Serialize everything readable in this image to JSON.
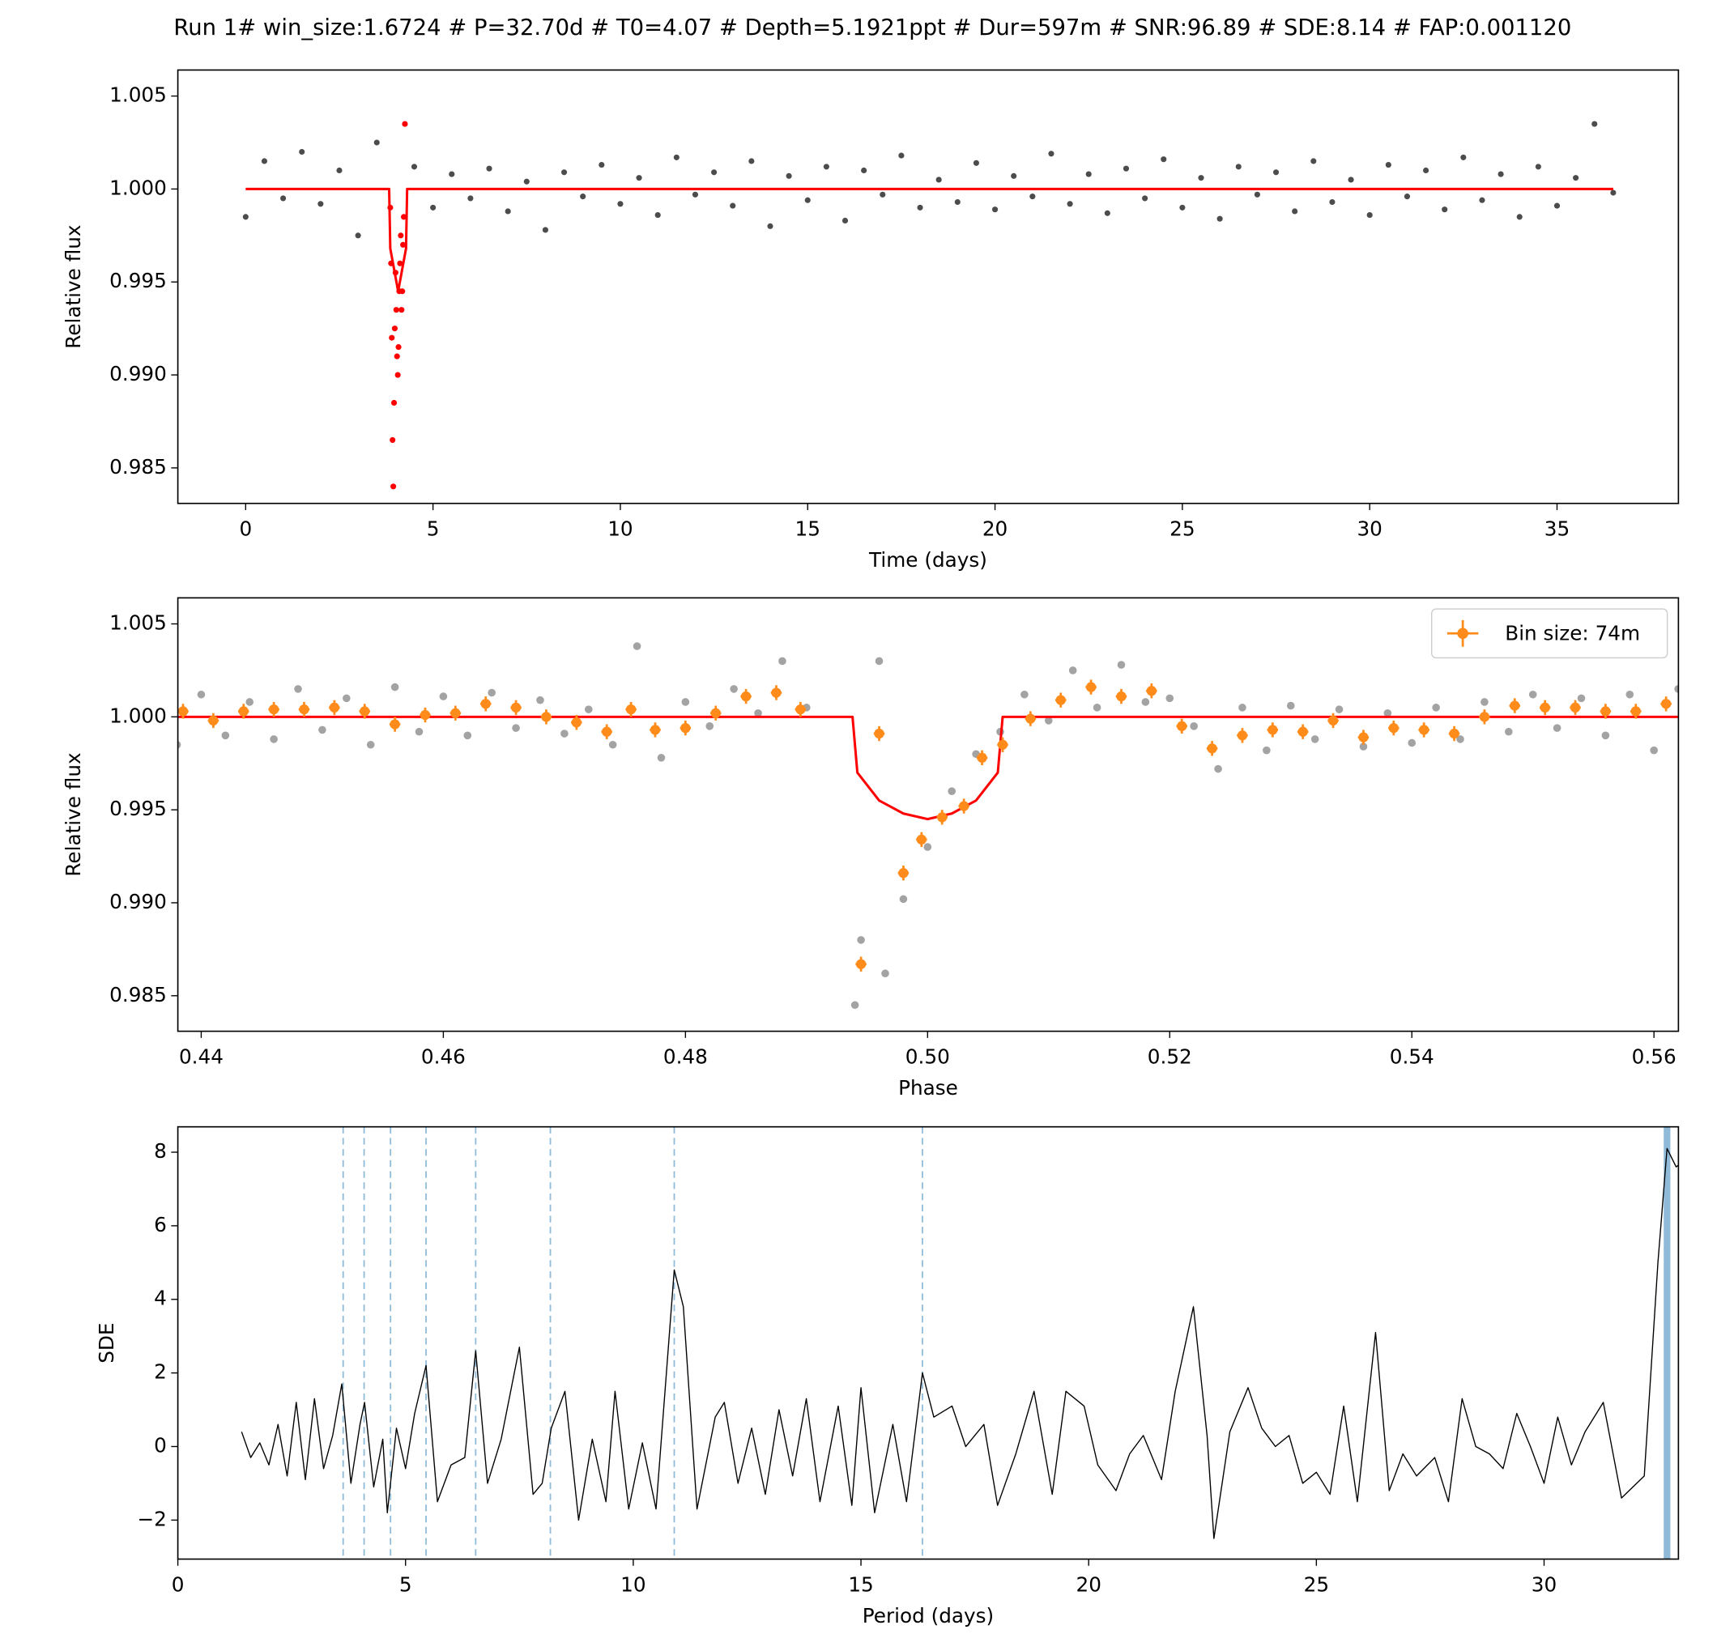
{
  "title": "Run 1# win_size:1.6724 # P=32.70d # T0=4.07 # Depth=5.1921ppt # Dur=597m # SNR:96.89 # SDE:8.14 # FAP:0.001120",
  "chart_data": [
    {
      "type": "scatter",
      "xlabel": "Time (days)",
      "ylabel": "Relative flux",
      "xlim": [
        -1.81,
        38.24
      ],
      "ylim": [
        0.98309,
        1.0064
      ],
      "xticks": [
        0,
        5,
        10,
        15,
        20,
        25,
        30,
        35
      ],
      "yticks": [
        0.985,
        {
          "value": 0.99,
          "label": "0.990"
        },
        0.995,
        {
          "value": 1,
          "label": "1.000"
        },
        1.005
      ],
      "series": [
        {
          "mode": "markers",
          "color": "#000000",
          "x": [
            0,
            0.5,
            1,
            1.5,
            2,
            2.5,
            3,
            3.5,
            4.5,
            5,
            5.5,
            6,
            6.5,
            7,
            7.5,
            8,
            8.5,
            9,
            9.5,
            10,
            10.5,
            11,
            11.5,
            12,
            12.5,
            13,
            13.5,
            14,
            14.5,
            15,
            15.5,
            16,
            16.5,
            17,
            17.5,
            18,
            18.5,
            19,
            19.5,
            20,
            20.5,
            21,
            21.5,
            22,
            22.5,
            23,
            23.5,
            24,
            24.5,
            25,
            25.5,
            26,
            26.5,
            27,
            27.5,
            28,
            28.5,
            29,
            29.5,
            30,
            30.5,
            31,
            31.5,
            32,
            32.5,
            33,
            33.5,
            34,
            34.5,
            35,
            35.5,
            36,
            36.5
          ],
          "values": [
            0.9985,
            1.0015,
            0.9995,
            1.002,
            0.9992,
            1.001,
            0.9975,
            1.0025,
            1.0012,
            0.999,
            1.0008,
            0.9995,
            1.0011,
            0.9988,
            1.0004,
            0.9978,
            1.0009,
            0.9996,
            1.0013,
            0.9992,
            1.0006,
            0.9986,
            1.0017,
            0.9997,
            1.0009,
            0.9991,
            1.0015,
            0.998,
            1.0007,
            0.9994,
            1.0012,
            0.9983,
            1.001,
            0.9997,
            1.0018,
            0.999,
            1.0005,
            0.9993,
            1.0014,
            0.9989,
            1.0007,
            0.9996,
            1.0019,
            0.9992,
            1.0008,
            0.9987,
            1.0011,
            0.9995,
            1.0016,
            0.999,
            1.0006,
            0.9984,
            1.0012,
            0.9997,
            1.0009,
            0.9988,
            1.0015,
            0.9993,
            1.0005,
            0.9986,
            1.0013,
            0.9996,
            1.001,
            0.9989,
            1.0017,
            0.9994,
            1.0008,
            0.9985,
            1.0012,
            0.9991,
            1.0006,
            1.0035,
            0.9998
          ]
        },
        {
          "mode": "markers",
          "color": "#ff0000",
          "x": [
            3.86,
            3.88,
            3.9,
            3.92,
            3.94,
            3.96,
            3.98,
            4.0,
            4.02,
            4.04,
            4.06,
            4.08,
            4.1,
            4.12,
            4.14,
            4.16,
            4.18,
            4.2,
            4.22,
            4.25
          ],
          "values": [
            0.999,
            0.996,
            0.992,
            0.9865,
            0.984,
            0.9885,
            0.9925,
            0.9955,
            0.9935,
            0.991,
            0.99,
            0.9915,
            0.9945,
            0.996,
            0.9975,
            0.9935,
            0.9945,
            0.997,
            0.9985,
            1.0035
          ]
        },
        {
          "mode": "line",
          "color": "#ff0000",
          "x": [
            0,
            3.83,
            3.86,
            4.07,
            4.28,
            4.31,
            36.5
          ],
          "values": [
            1,
            1,
            0.9968,
            0.9945,
            0.9968,
            1,
            1
          ]
        }
      ]
    },
    {
      "type": "scatter",
      "xlabel": "Phase",
      "ylabel": "Relative flux",
      "xlim": [
        0.43807,
        0.56202
      ],
      "ylim": [
        0.98309,
        1.0064
      ],
      "xticks": [
        0.44,
        0.46,
        0.48,
        {
          "value": 0.5,
          "label": "0.50"
        },
        0.52,
        0.54,
        0.56
      ],
      "yticks": [
        0.985,
        {
          "value": 0.99,
          "label": "0.990"
        },
        0.995,
        {
          "value": 1,
          "label": "1.000"
        },
        1.005
      ],
      "legend": "upper right",
      "series": [
        {
          "mode": "markers",
          "color": "#333333",
          "x": [
            0.438,
            0.44,
            0.442,
            0.444,
            0.446,
            0.448,
            0.45,
            0.452,
            0.454,
            0.456,
            0.458,
            0.46,
            0.462,
            0.464,
            0.466,
            0.468,
            0.47,
            0.472,
            0.474,
            0.476,
            0.478,
            0.48,
            0.482,
            0.484,
            0.486,
            0.488,
            0.49,
            0.494,
            0.4945,
            0.496,
            0.4965,
            0.498,
            0.5,
            0.502,
            0.504,
            0.506,
            0.508,
            0.51,
            0.512,
            0.514,
            0.516,
            0.518,
            0.52,
            0.522,
            0.524,
            0.526,
            0.528,
            0.53,
            0.532,
            0.534,
            0.536,
            0.538,
            0.54,
            0.542,
            0.544,
            0.546,
            0.548,
            0.55,
            0.552,
            0.554,
            0.556,
            0.558,
            0.56,
            0.562
          ],
          "values": [
            0.9985,
            1.0012,
            0.999,
            1.0008,
            0.9988,
            1.0015,
            0.9993,
            1.001,
            0.9985,
            1.0016,
            0.9992,
            1.0011,
            0.999,
            1.0013,
            0.9994,
            1.0009,
            0.9991,
            1.0004,
            0.9985,
            1.0038,
            0.9978,
            1.0008,
            0.9995,
            1.0015,
            1.0002,
            1.003,
            1.0005,
            0.9845,
            0.988,
            1.003,
            0.9862,
            0.9902,
            0.993,
            0.996,
            0.998,
            0.9992,
            1.0012,
            0.9998,
            1.0025,
            1.0005,
            1.0028,
            1.0008,
            1.001,
            0.9995,
            0.9972,
            1.0005,
            0.9982,
            1.0006,
            0.9988,
            1.0004,
            0.9984,
            1.0002,
            0.9986,
            1.0005,
            0.9988,
            1.0008,
            0.9992,
            1.0012,
            0.9994,
            1.001,
            0.999,
            1.0012,
            0.9982,
            1.0015
          ]
        },
        {
          "mode": "line",
          "color": "#ff0000",
          "x": [
            0.438,
            0.4938,
            0.4942,
            0.496,
            0.498,
            0.5,
            0.502,
            0.504,
            0.5058,
            0.5062,
            0.562
          ],
          "values": [
            1,
            1,
            0.997,
            0.9955,
            0.9948,
            0.9945,
            0.9948,
            0.9955,
            0.997,
            1,
            1
          ]
        },
        {
          "mode": "errorbar",
          "color": "#ff8c1a",
          "name": "Bin size: 74m",
          "xerr": 0.00045,
          "yerr": 0.0004,
          "x": [
            0.4385,
            0.441,
            0.4435,
            0.446,
            0.4485,
            0.451,
            0.4535,
            0.456,
            0.4585,
            0.461,
            0.4635,
            0.466,
            0.4685,
            0.471,
            0.4735,
            0.4755,
            0.4775,
            0.48,
            0.4825,
            0.485,
            0.4875,
            0.4895,
            0.4945,
            0.496,
            0.498,
            0.4995,
            0.5012,
            0.503,
            0.5045,
            0.5062,
            0.5085,
            0.511,
            0.5135,
            0.516,
            0.5185,
            0.521,
            0.5235,
            0.526,
            0.5285,
            0.531,
            0.5335,
            0.536,
            0.5385,
            0.541,
            0.5435,
            0.546,
            0.5485,
            0.551,
            0.5535,
            0.556,
            0.5585,
            0.561
          ],
          "values": [
            1.0003,
            0.9998,
            1.0003,
            1.0004,
            1.0004,
            1.0005,
            1.0003,
            0.9996,
            1.0001,
            1.0002,
            1.0007,
            1.0005,
            1,
            0.9997,
            0.9992,
            1.0004,
            0.9993,
            0.9994,
            1.0002,
            1.0011,
            1.0013,
            1.0004,
            0.9867,
            0.9991,
            0.9916,
            0.9934,
            0.9946,
            0.9952,
            0.9978,
            0.9985,
            0.9999,
            1.0009,
            1.0016,
            1.0011,
            1.0014,
            0.9995,
            0.9983,
            0.999,
            0.9993,
            0.9992,
            0.9998,
            0.9989,
            0.9994,
            0.9993,
            0.9991,
            1,
            1.0006,
            1.0005,
            1.0005,
            1.0003,
            1.0003,
            1.0007
          ]
        }
      ]
    },
    {
      "type": "line",
      "xlabel": "Period (days)",
      "ylabel": "SDE",
      "xlim": [
        0,
        32.95
      ],
      "ylim": [
        -3.06,
        8.69
      ],
      "xticks": [
        0,
        5,
        10,
        15,
        20,
        25,
        30
      ],
      "yticks": [
        {
          "value": -2,
          "label": "−2"
        },
        0,
        2,
        4,
        6,
        8
      ],
      "vlines": [
        3.63,
        4.09,
        4.67,
        5.45,
        6.54,
        8.18,
        10.9,
        16.35
      ],
      "vline_color": "#1f77b4",
      "highlight": 32.7,
      "series": [
        {
          "mode": "line",
          "color": "#000000",
          "x": [
            1.4,
            1.6,
            1.8,
            2.0,
            2.2,
            2.4,
            2.6,
            2.8,
            3.0,
            3.2,
            3.4,
            3.6,
            3.8,
            4.0,
            4.1,
            4.3,
            4.5,
            4.6,
            4.8,
            5.0,
            5.2,
            5.45,
            5.7,
            6.0,
            6.3,
            6.54,
            6.8,
            7.1,
            7.5,
            7.8,
            8.0,
            8.2,
            8.5,
            8.8,
            9.1,
            9.4,
            9.6,
            9.9,
            10.2,
            10.5,
            10.9,
            11.1,
            11.4,
            11.8,
            12.0,
            12.3,
            12.6,
            12.9,
            13.2,
            13.5,
            13.8,
            14.1,
            14.5,
            14.8,
            15.0,
            15.3,
            15.7,
            16.0,
            16.35,
            16.6,
            17.0,
            17.3,
            17.7,
            18.0,
            18.4,
            18.8,
            19.2,
            19.5,
            19.9,
            20.2,
            20.6,
            20.9,
            21.2,
            21.6,
            21.9,
            22.3,
            22.6,
            22.75,
            23.1,
            23.5,
            23.8,
            24.1,
            24.4,
            24.7,
            25.0,
            25.3,
            25.6,
            25.9,
            26.3,
            26.6,
            26.9,
            27.2,
            27.6,
            27.9,
            28.2,
            28.5,
            28.8,
            29.1,
            29.4,
            29.7,
            30.0,
            30.3,
            30.6,
            30.9,
            31.3,
            31.7,
            32.2,
            32.5,
            32.7,
            32.9,
            32.95
          ],
          "values": [
            0.4,
            -0.3,
            0.1,
            -0.5,
            0.6,
            -0.8,
            1.2,
            -0.9,
            1.3,
            -0.6,
            0.3,
            1.7,
            -1.0,
            0.6,
            1.2,
            -1.1,
            0.2,
            -1.8,
            0.5,
            -0.6,
            0.9,
            2.2,
            -1.5,
            -0.5,
            -0.3,
            2.6,
            -1.0,
            0.2,
            2.7,
            -1.3,
            -1.0,
            0.5,
            1.5,
            -2.0,
            0.2,
            -1.5,
            1.5,
            -1.7,
            0.1,
            -1.7,
            4.8,
            3.8,
            -1.7,
            0.8,
            1.2,
            -1.0,
            0.5,
            -1.3,
            1.0,
            -0.8,
            1.3,
            -1.5,
            1.1,
            -1.6,
            1.6,
            -1.8,
            0.6,
            -1.5,
            2.0,
            0.8,
            1.1,
            0.0,
            0.6,
            -1.6,
            -0.2,
            1.5,
            -1.3,
            1.5,
            1.1,
            -0.5,
            -1.2,
            -0.2,
            0.3,
            -0.9,
            1.5,
            3.8,
            0.3,
            -2.5,
            0.4,
            1.6,
            0.5,
            0.0,
            0.3,
            -1.0,
            -0.7,
            -1.3,
            1.1,
            -1.5,
            3.1,
            -1.2,
            -0.2,
            -0.8,
            -0.3,
            -1.5,
            1.3,
            0.0,
            -0.2,
            -0.6,
            0.9,
            0.0,
            -1.0,
            0.8,
            -0.5,
            0.4,
            1.2,
            -1.4,
            -0.8,
            5.0,
            8.1,
            7.6,
            7.65
          ]
        }
      ]
    }
  ]
}
